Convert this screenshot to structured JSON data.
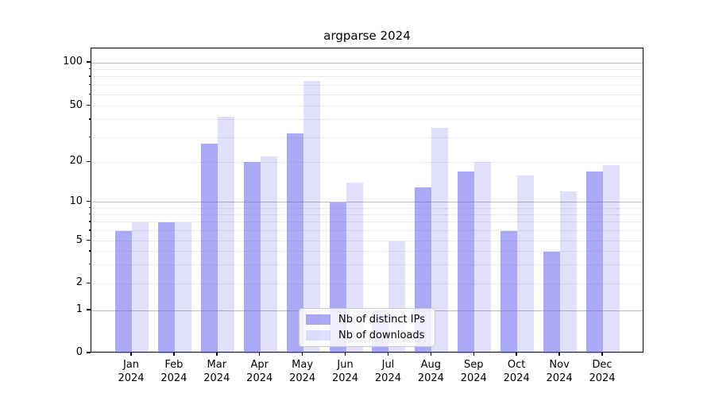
{
  "figure": {
    "title": "argparse 2024"
  },
  "chart_data": {
    "type": "bar",
    "title": "argparse 2024",
    "categories": [
      "Jan 2024",
      "Feb 2024",
      "Mar 2024",
      "Apr 2024",
      "May 2024",
      "Jun 2024",
      "Jul 2024",
      "Aug 2024",
      "Sep 2024",
      "Oct 2024",
      "Nov 2024",
      "Dec 2024"
    ],
    "category_month": [
      "Jan",
      "Feb",
      "Mar",
      "Apr",
      "May",
      "Jun",
      "Jul",
      "Aug",
      "Sep",
      "Oct",
      "Nov",
      "Dec"
    ],
    "category_year": "2024",
    "series": [
      {
        "name": "Nb of distinct IPs",
        "color": "#6464eb",
        "alpha": 0.55,
        "values": [
          6,
          7,
          27,
          20,
          32,
          10,
          1,
          13,
          17,
          6,
          4,
          17
        ]
      },
      {
        "name": "Nb of downloads",
        "color": "#6464eb",
        "alpha": 0.2,
        "values": [
          7,
          7,
          42,
          22,
          75,
          14,
          5,
          35,
          20,
          16,
          12,
          19
        ]
      }
    ],
    "xlabel": "",
    "ylabel": "",
    "yscale": "symlog",
    "ylim": [
      0,
      127
    ],
    "ytick_labels": [
      "0",
      "1",
      "2",
      "5",
      "10",
      "20",
      "50",
      "100"
    ],
    "ytick_values": [
      0,
      1,
      2,
      5,
      10,
      20,
      50,
      100
    ],
    "y_major_gridlines": [
      1,
      10,
      100
    ],
    "y_minor_gridlines": [
      2,
      3,
      4,
      5,
      6,
      7,
      8,
      9,
      20,
      30,
      40,
      50,
      60,
      70,
      80,
      90
    ],
    "grid": true,
    "legend_position": "lower center",
    "colors": {
      "major_grid": "#bdbdbd",
      "minor_grid": "#ebebeb",
      "spine": "#000000",
      "background": "#ffffff"
    }
  }
}
